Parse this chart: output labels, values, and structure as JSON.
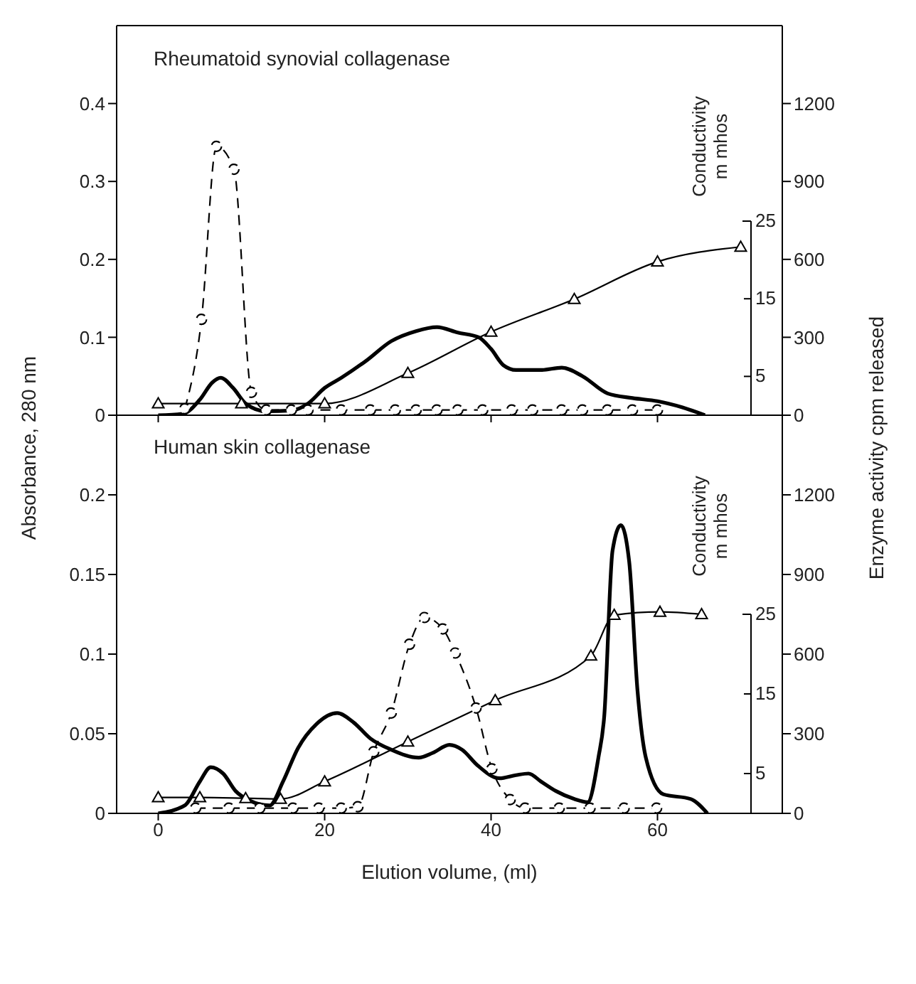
{
  "chart_data": [
    {
      "type": "line",
      "title": "Rheumatoid synovial collagenase",
      "ylabel": "Absorbance, 280 nm",
      "y2label": "Enzyme activity cpm released",
      "y3label": "Conductivity m mhos",
      "tick_labels": "y",
      "xlim": [
        -5,
        75
      ],
      "xticks": [
        0,
        20,
        40,
        60
      ],
      "ylim": [
        0,
        0.5
      ],
      "yticks": [
        0,
        0.1,
        0.2,
        0.3,
        0.4
      ],
      "y2lim": [
        0,
        1500
      ],
      "y2ticks": [
        0,
        300,
        600,
        900,
        1200
      ],
      "y3lim": [
        0,
        50
      ],
      "y3ticks": [
        5,
        15,
        25
      ],
      "series": [
        {
          "color": "#000000",
          "marker": "none",
          "line_style": "solid",
          "x": [
            0,
            3,
            5,
            6.5,
            7.5,
            9,
            10.5,
            13,
            16,
            18,
            20,
            22,
            25,
            28,
            31,
            33.5,
            36,
            38.5,
            40,
            41.5,
            43,
            46,
            48.5,
            51,
            54,
            57,
            60,
            63,
            65.7
          ],
          "values": [
            0,
            0.002,
            0.02,
            0.042,
            0.048,
            0.035,
            0.015,
            0.005,
            0.006,
            0.015,
            0.035,
            0.048,
            0.07,
            0.095,
            0.108,
            0.113,
            0.106,
            0.1,
            0.085,
            0.064,
            0.058,
            0.058,
            0.061,
            0.05,
            0.028,
            0.022,
            0.018,
            0.01,
            0
          ]
        },
        {
          "color": "#000000",
          "marker": "circle",
          "line_style": "dashed",
          "axis": "y2",
          "x": [
            3.2,
            5.2,
            7,
            9.1,
            11.2,
            13,
            16,
            18,
            22,
            25.5,
            28.5,
            31,
            33.5,
            36,
            39,
            42.5,
            45,
            48.5,
            51,
            54,
            57,
            60
          ],
          "values": [
            25,
            369,
            1035,
            947,
            88,
            20,
            20,
            20,
            20,
            20,
            20,
            20,
            20,
            20,
            20,
            20,
            20,
            20,
            20,
            20,
            20,
            20
          ]
        },
        {
          "color": "#000000",
          "marker": "triangle",
          "line_style": "solid",
          "axis": "y3",
          "x": [
            0,
            10,
            20,
            30,
            40,
            50,
            60,
            70
          ],
          "values": [
            1.5,
            1.5,
            1.5,
            5.4,
            10.7,
            14.9,
            19.7,
            21.6
          ]
        }
      ]
    },
    {
      "type": "line",
      "title": "Human skin collagenase",
      "xlabel": "Elution volume, (ml)",
      "y3label": "Conductivity m mhos",
      "xlim": [
        -5,
        75
      ],
      "xticks": [
        0,
        20,
        40,
        60
      ],
      "ylim": [
        0,
        0.25
      ],
      "yticks": [
        0,
        0.05,
        0.1,
        0.15,
        0.2
      ],
      "y2lim": [
        0,
        1500
      ],
      "y2ticks": [
        0,
        300,
        600,
        900,
        1200
      ],
      "y3lim": [
        0,
        50
      ],
      "y3ticks": [
        5,
        15,
        25
      ],
      "series": [
        {
          "color": "#000000",
          "marker": "none",
          "line_style": "solid",
          "x": [
            0,
            3.2,
            5,
            6.3,
            7.8,
            9.3,
            11,
            13.4,
            15,
            16.8,
            19,
            21.5,
            23.5,
            25.5,
            28,
            31.3,
            33,
            35,
            36.5,
            38.4,
            41,
            43,
            44.5,
            46,
            47.8,
            50,
            51.6,
            52.9,
            53.6,
            54.6,
            55.6,
            56.6,
            57.6,
            58.6,
            60.7,
            64,
            66
          ],
          "values": [
            0,
            0.005,
            0.02,
            0.029,
            0.025,
            0.014,
            0.008,
            0.005,
            0.02,
            0.041,
            0.056,
            0.063,
            0.057,
            0.047,
            0.04,
            0.035,
            0.038,
            0.043,
            0.04,
            0.03,
            0.022,
            0.024,
            0.025,
            0.02,
            0.014,
            0.009,
            0.007,
            0.035,
            0.061,
            0.165,
            0.181,
            0.158,
            0.077,
            0.035,
            0.012,
            0.009,
            0
          ]
        },
        {
          "color": "#000000",
          "marker": "circle",
          "line_style": "dashed",
          "axis": "y2",
          "x": [
            4.5,
            8.5,
            12.2,
            16.2,
            19.3,
            22,
            24,
            25.9,
            28,
            30.2,
            32,
            34.2,
            35.7,
            38.2,
            40.1,
            42.3,
            44.1,
            48.2,
            51.9,
            56,
            59.9
          ],
          "values": [
            20,
            20,
            20,
            20,
            20,
            20,
            25,
            232,
            378,
            637,
            738,
            695,
            604,
            397,
            168,
            52,
            20,
            20,
            20,
            20,
            20
          ]
        },
        {
          "color": "#000000",
          "marker": "triangle",
          "line_style": "solid",
          "axis": "y3",
          "x": [
            0,
            5,
            10.5,
            14.7,
            20,
            30,
            40.5,
            52,
            54.8,
            60.3,
            65.3
          ],
          "values": [
            2,
            2,
            1.9,
            1.8,
            4,
            9,
            14.2,
            19.8,
            24.9,
            25.3,
            25
          ]
        }
      ]
    }
  ]
}
